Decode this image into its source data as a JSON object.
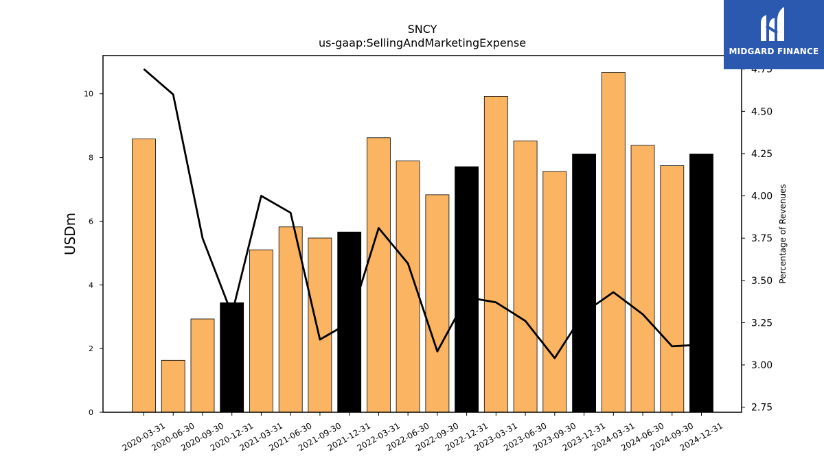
{
  "chart_data": {
    "type": "bar",
    "title": "SNCY",
    "subtitle": "us-gaap:SellingAndMarketingExpense",
    "ylabel": "USDm",
    "y2label": "Percentage of Revenues",
    "categories": [
      "2020-03-31",
      "2020-06-30",
      "2020-09-30",
      "2020-12-31",
      "2021-03-31",
      "2021-06-30",
      "2021-09-30",
      "2021-12-31",
      "2022-03-31",
      "2022-06-30",
      "2022-09-30",
      "2022-12-31",
      "2023-03-31",
      "2023-06-30",
      "2023-09-30",
      "2023-12-31",
      "2024-03-31",
      "2024-06-30",
      "2024-09-30",
      "2024-12-31"
    ],
    "series": [
      {
        "values": [
          8.58,
          1.63,
          2.93,
          3.44,
          5.1,
          5.82,
          5.47,
          5.66,
          8.62,
          7.89,
          6.83,
          7.71,
          9.92,
          8.52,
          7.56,
          8.11,
          10.67,
          8.38,
          7.74,
          8.11
        ]
      },
      {
        "axis": "right",
        "values": [
          4.75,
          4.6,
          3.75,
          3.3,
          4.0,
          3.9,
          3.15,
          3.25,
          3.81,
          3.6,
          3.08,
          3.4,
          3.37,
          3.26,
          3.04,
          3.31,
          3.43,
          3.3,
          3.11,
          3.12
        ]
      }
    ],
    "ylim": [
      0,
      11.2
    ],
    "y2lim": [
      2.72,
      4.83
    ],
    "yticks": [
      "0",
      "2",
      "4",
      "6",
      "8",
      "10"
    ],
    "y2ticks": [
      "2.75",
      "3.00",
      "3.25",
      "3.50",
      "3.75",
      "4.00",
      "4.25",
      "4.50",
      "4.75"
    ],
    "colors": {
      "bar": "#fbb462",
      "bar_year_end": "#000000",
      "line": "#000000"
    },
    "grid": false
  },
  "logo": {
    "text": "MIDGARD FINANCE",
    "background": "#2b59b0"
  }
}
